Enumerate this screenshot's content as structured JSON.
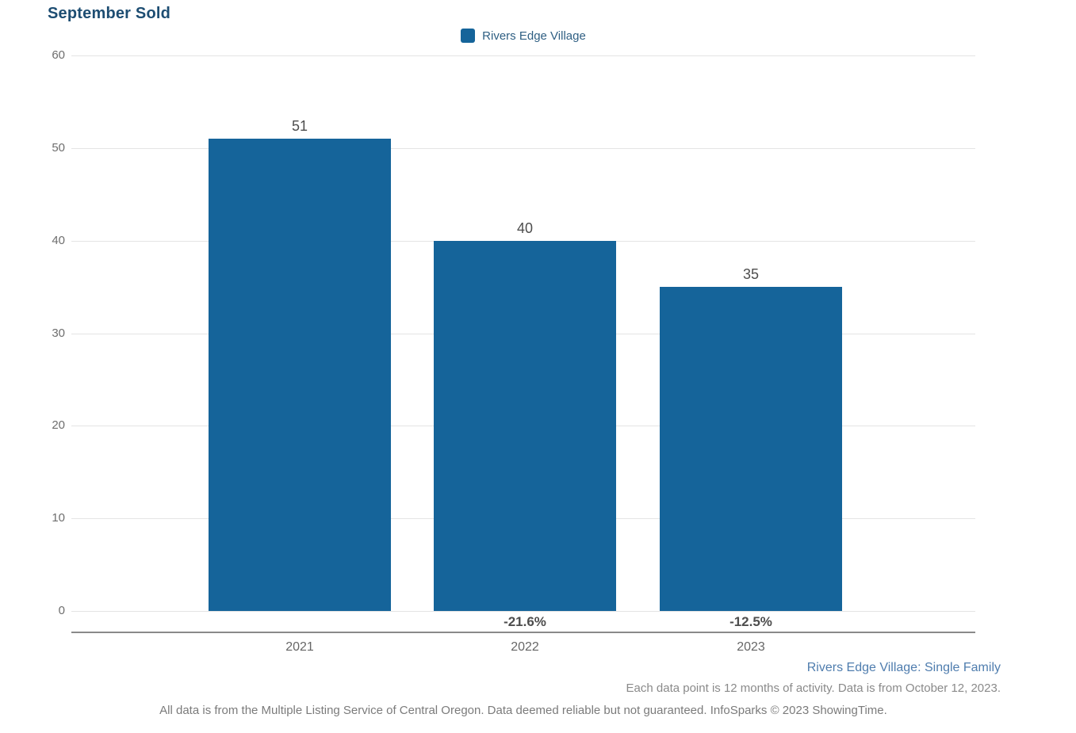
{
  "title": "September Sold",
  "legend": {
    "label": "Rivers Edge Village",
    "swatch_color": "#15649a"
  },
  "chart_data": {
    "type": "bar",
    "title": "September Sold",
    "categories": [
      "2021",
      "2022",
      "2023"
    ],
    "series": [
      {
        "name": "Rivers Edge Village",
        "values": [
          51,
          40,
          35
        ]
      }
    ],
    "value_labels": [
      "51",
      "40",
      "35"
    ],
    "pct_change_labels": [
      null,
      "-21.6%",
      "-12.5%"
    ],
    "xlabel": "",
    "ylabel": "",
    "ylim": [
      0,
      60
    ],
    "yticks": [
      60,
      50,
      40,
      30,
      20,
      10,
      0
    ],
    "grid": "horizontal",
    "legend_position": "top-center",
    "bar_color": "#15649a"
  },
  "footer": {
    "series_note": "Rivers Edge Village: Single Family",
    "data_note": "Each data point is 12 months of activity. Data is from October 12, 2023.",
    "disclaimer": "All data is from the Multiple Listing Service of Central Oregon. Data deemed reliable but not guaranteed. InfoSparks © 2023 ShowingTime."
  }
}
